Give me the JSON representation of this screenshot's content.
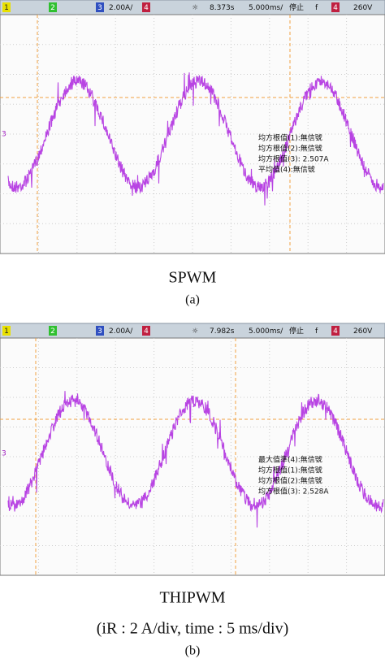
{
  "panels": [
    {
      "toolbar": {
        "ch1": "1",
        "ch2": "2",
        "ch3": "3",
        "scale": "2.00A/",
        "ch4": "4",
        "time": "8.373s",
        "timebase": "5.000ms/",
        "status": "停止",
        "trigger": "f",
        "trig_ch": "4",
        "level": "260V"
      },
      "marker": "3",
      "measurements": [
        "均方根值(1):無信號",
        "均方根值(2):無信號",
        "均方根值(3): 2.507A",
        "平均值(4):無信號"
      ],
      "label": "SPWM",
      "sublabel": "(a)"
    },
    {
      "toolbar": {
        "ch1": "1",
        "ch2": "2",
        "ch3": "3",
        "scale": "2.00A/",
        "ch4": "4",
        "time": "7.982s",
        "timebase": "5.000ms/",
        "status": "停止",
        "trigger": "f",
        "trig_ch": "4",
        "level": "260V"
      },
      "marker": "3",
      "measurements": [
        "最大值準(4):無信號",
        "均方根值(1):無信號",
        "均方根值(2):無信號",
        "均方根值(3): 2.528A"
      ],
      "label": "THIPWM",
      "note": "(iR : 2 A/div, time : 5 ms/div)",
      "sublabel": "(b)"
    }
  ]
}
